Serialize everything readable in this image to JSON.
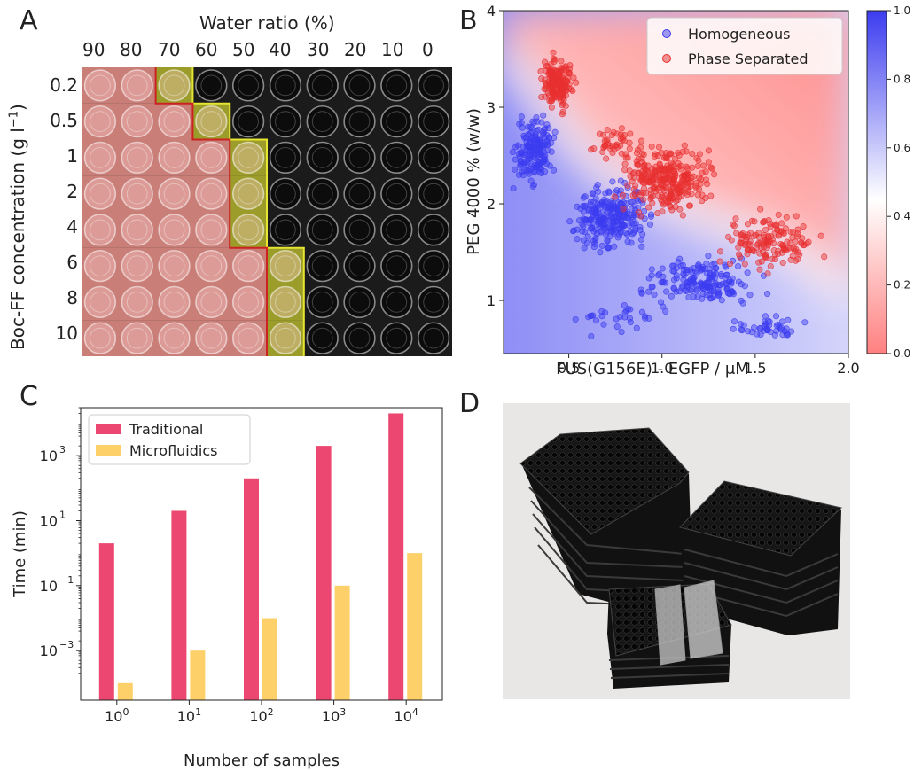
{
  "panels": {
    "a": "A",
    "b": "B",
    "c": "C",
    "d": "D"
  },
  "panel_a": {
    "top_title": "Water ratio (%)",
    "water_ratios": [
      "90",
      "80",
      "70",
      "60",
      "50",
      "40",
      "30",
      "20",
      "10",
      "0"
    ],
    "ylabel": "Boc-FF concentration (g l",
    "ylabel_sup": "−1",
    "ylabel_end": ")",
    "concentrations": [
      "0.2",
      "0.5",
      "1",
      "2",
      "4",
      "6",
      "8",
      "10"
    ],
    "boundary_water_ratio_by_row": [
      "70",
      "60",
      "50",
      "50",
      "50",
      "40",
      "40",
      "40"
    ],
    "colors": {
      "gel": "#e88f88",
      "boundary": "#c8c832",
      "plate": "#1b1b1b"
    }
  },
  "chart_data": [
    {
      "type": "scatter",
      "panel": "B",
      "xlabel": "FUS(G156E) - EGFP / μM",
      "ylabel": "PEG 4000 % (w/w)",
      "xlim": [
        0.15,
        2.0
      ],
      "ylim": [
        0.45,
        4.0
      ],
      "xticks": [
        "0.5",
        "1.0",
        "1.5",
        "2.0"
      ],
      "yticks": [
        "1",
        "2",
        "3",
        "4"
      ],
      "colorbar_ticks": [
        "0.0",
        "0.2",
        "0.4",
        "0.6",
        "0.8",
        "1.0"
      ],
      "colorbar_range": [
        0.0,
        1.0
      ],
      "legend": [
        "Homogeneous",
        "Phase Separated"
      ],
      "legend_position": "top-right",
      "colors": {
        "Homogeneous": "#3c3cf0",
        "Phase Separated": "#e83030"
      },
      "series": [
        {
          "name": "Homogeneous",
          "clusters": [
            {
              "x": [
                0.18,
                0.45
              ],
              "y": [
                2.1,
                3.0
              ],
              "n": 170
            },
            {
              "x": [
                0.45,
                1.0
              ],
              "y": [
                1.4,
                2.3
              ],
              "n": 260
            },
            {
              "x": [
                0.8,
                1.6
              ],
              "y": [
                0.9,
                1.5
              ],
              "n": 180
            },
            {
              "x": [
                1.3,
                1.85
              ],
              "y": [
                0.55,
                0.9
              ],
              "n": 45
            },
            {
              "x": [
                0.4,
                1.2
              ],
              "y": [
                0.55,
                1.1
              ],
              "n": 30
            }
          ]
        },
        {
          "name": "Phase Separated",
          "clusters": [
            {
              "x": [
                0.32,
                0.55
              ],
              "y": [
                2.9,
                3.6
              ],
              "n": 170
            },
            {
              "x": [
                0.7,
                1.35
              ],
              "y": [
                1.8,
                2.7
              ],
              "n": 300
            },
            {
              "x": [
                1.2,
                1.95
              ],
              "y": [
                1.2,
                2.0
              ],
              "n": 150
            },
            {
              "x": [
                0.55,
                0.95
              ],
              "y": [
                2.4,
                2.9
              ],
              "n": 40
            }
          ]
        }
      ]
    },
    {
      "type": "bar",
      "panel": "C",
      "xlabel": "Number of samples",
      "ylabel": "Time (min)",
      "log_scale": true,
      "categories": [
        "10^0",
        "10^1",
        "10^2",
        "10^3",
        "10^4"
      ],
      "xtick_base": "10",
      "xtick_exps": [
        "0",
        "1",
        "2",
        "3",
        "4"
      ],
      "yticks": [
        {
          "base": "10",
          "exp": "3",
          "value": 1000
        },
        {
          "base": "10",
          "exp": "1",
          "value": 10
        },
        {
          "base": "10",
          "exp": "−1",
          "value": 0.1
        },
        {
          "base": "10",
          "exp": "−3",
          "value": 0.001
        }
      ],
      "ylim": [
        3e-05,
        30000
      ],
      "legend_position": "top-left",
      "series": [
        {
          "name": "Traditional",
          "color": "#ec4770",
          "values": [
            2,
            20,
            200,
            2000,
            20000
          ]
        },
        {
          "name": "Microfluidics",
          "color": "#fdd069",
          "values": [
            0.0001,
            0.001,
            0.01,
            0.1,
            1
          ]
        }
      ]
    }
  ]
}
